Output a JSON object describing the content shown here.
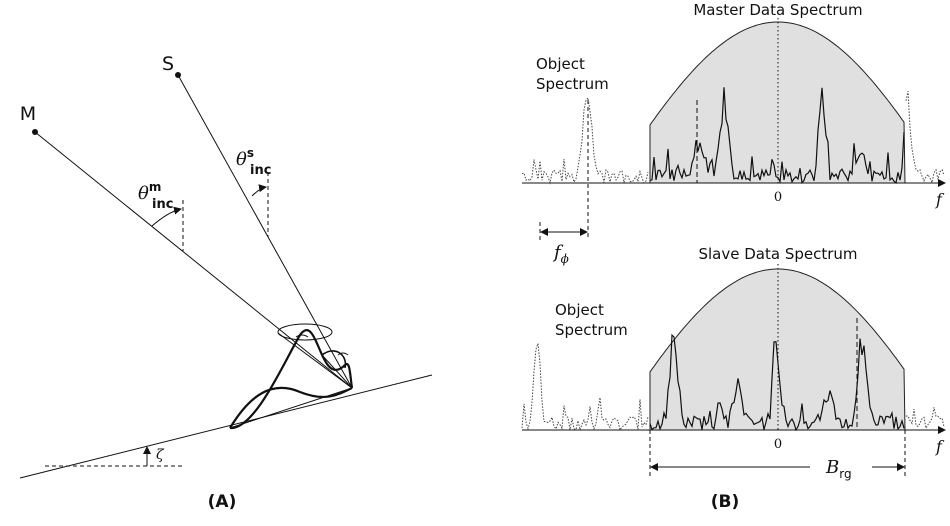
{
  "panel_a": {
    "master_label": "M",
    "slave_label": "S",
    "master_angle": {
      "symbol": "θ",
      "sup": "m",
      "sub": "inc"
    },
    "slave_angle": {
      "symbol": "θ",
      "sup": "s",
      "sub": "inc"
    },
    "slope_angle": "ζ",
    "caption": "(A)"
  },
  "panel_b": {
    "master_title": "Master Data Spectrum",
    "slave_title": "Slave Data Spectrum",
    "object_label_top": [
      "Object",
      "Spectrum"
    ],
    "object_label_bottom": [
      "Object",
      "Spectrum"
    ],
    "zero_top": "0",
    "zero_bottom": "0",
    "axis_top": "f",
    "axis_bottom": "f",
    "shift": {
      "symbol": "f",
      "sub": "ϕ"
    },
    "bandwidth": {
      "symbol": "B",
      "sub": "rg"
    },
    "caption": "(B)"
  }
}
